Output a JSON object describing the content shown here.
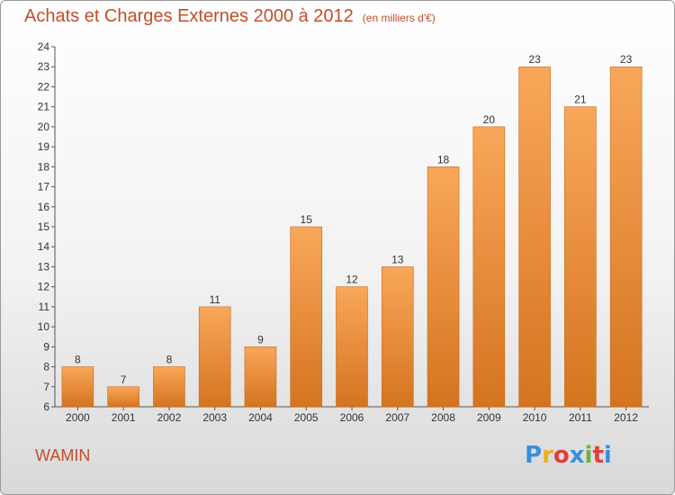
{
  "title": "Achats et Charges Externes 2000 à 2012",
  "unit": "(en milliers d'€)",
  "commune": "WAMIN",
  "brand": {
    "letters": [
      "P",
      "r",
      "o",
      "x",
      "i",
      "t",
      "i"
    ],
    "colors": [
      "#3c8fd8",
      "#e9b21a",
      "#e0403a",
      "#3c8fd8",
      "#6cb33f",
      "#e0403a",
      "#3c8fd8"
    ]
  },
  "colors": {
    "bar_top": "#f9a75a",
    "bar_bottom": "#d4741f",
    "title": "#c44d2a"
  },
  "chart_data": {
    "type": "bar",
    "categories": [
      "2000",
      "2001",
      "2002",
      "2003",
      "2004",
      "2005",
      "2006",
      "2007",
      "2008",
      "2009",
      "2010",
      "2011",
      "2012"
    ],
    "values": [
      8,
      7,
      8,
      11,
      9,
      15,
      12,
      13,
      18,
      20,
      23,
      21,
      23
    ],
    "ylim": [
      6,
      24
    ],
    "yticks": [
      6,
      7,
      8,
      9,
      10,
      11,
      12,
      13,
      14,
      15,
      16,
      17,
      18,
      19,
      20,
      21,
      22,
      23,
      24
    ],
    "grid": false,
    "data_labels": true
  }
}
